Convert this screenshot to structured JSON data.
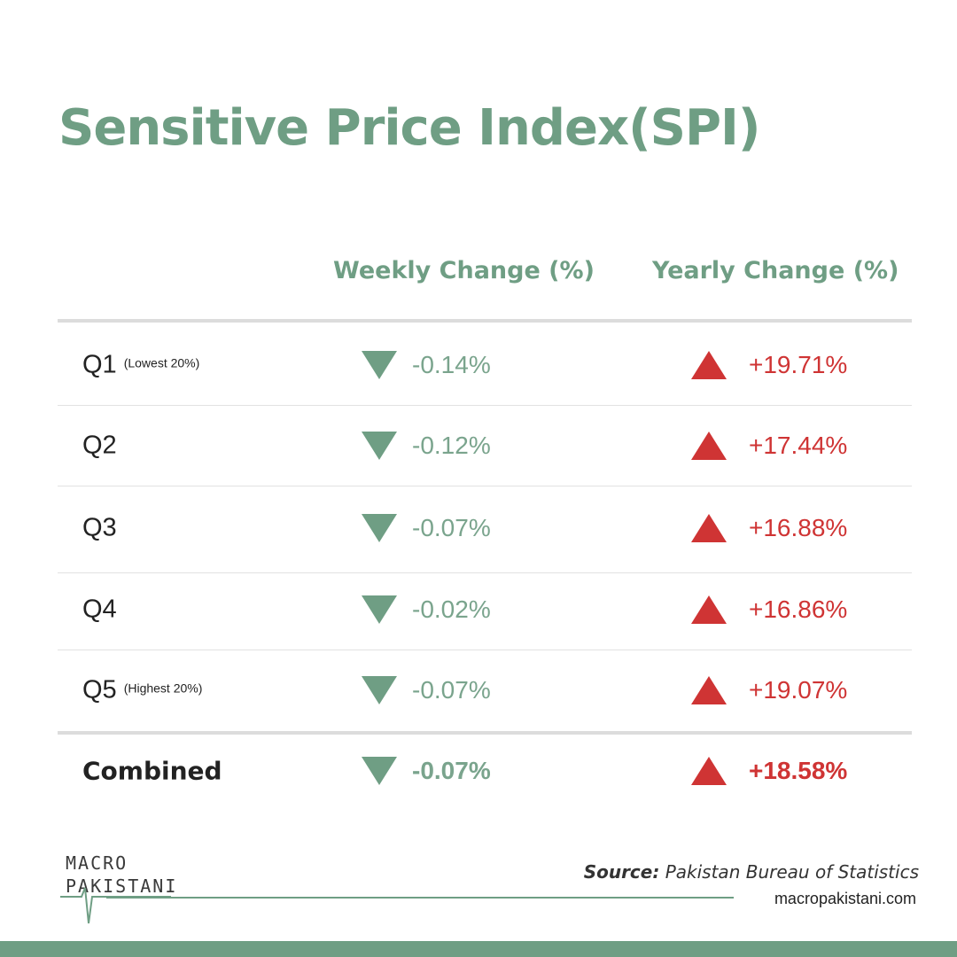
{
  "title": "Sensitive Price Index(SPI)",
  "columns": {
    "weekly": "Weekly Change (%)",
    "yearly": "Yearly Change (%)"
  },
  "rows": [
    {
      "label": "Q1",
      "sub": "(Lowest 20%)",
      "weekly": "-0.14%",
      "yearly": "+19.71%"
    },
    {
      "label": "Q2",
      "sub": "",
      "weekly": "-0.12%",
      "yearly": "+17.44%"
    },
    {
      "label": "Q3",
      "sub": "",
      "weekly": "-0.07%",
      "yearly": "+16.88%"
    },
    {
      "label": "Q4",
      "sub": "",
      "weekly": "-0.02%",
      "yearly": "+16.86%"
    },
    {
      "label": "Q5",
      "sub": "(Highest 20%)",
      "weekly": "-0.07%",
      "yearly": "+19.07%"
    }
  ],
  "combined": {
    "label": "Combined",
    "weekly": "-0.07%",
    "yearly": "+18.58%"
  },
  "footer": {
    "logo_line1": "MACRO",
    "logo_line2": "PAKISTANI",
    "source_label": "Source:",
    "source_text": "Pakistan Bureau of Statistics",
    "website": "macropakistani.com"
  },
  "colors": {
    "accent_green": "#6f9e84",
    "accent_red": "#cf3434"
  },
  "icons": {
    "weekly_trend": "triangle-down-icon",
    "yearly_trend": "triangle-up-icon"
  }
}
